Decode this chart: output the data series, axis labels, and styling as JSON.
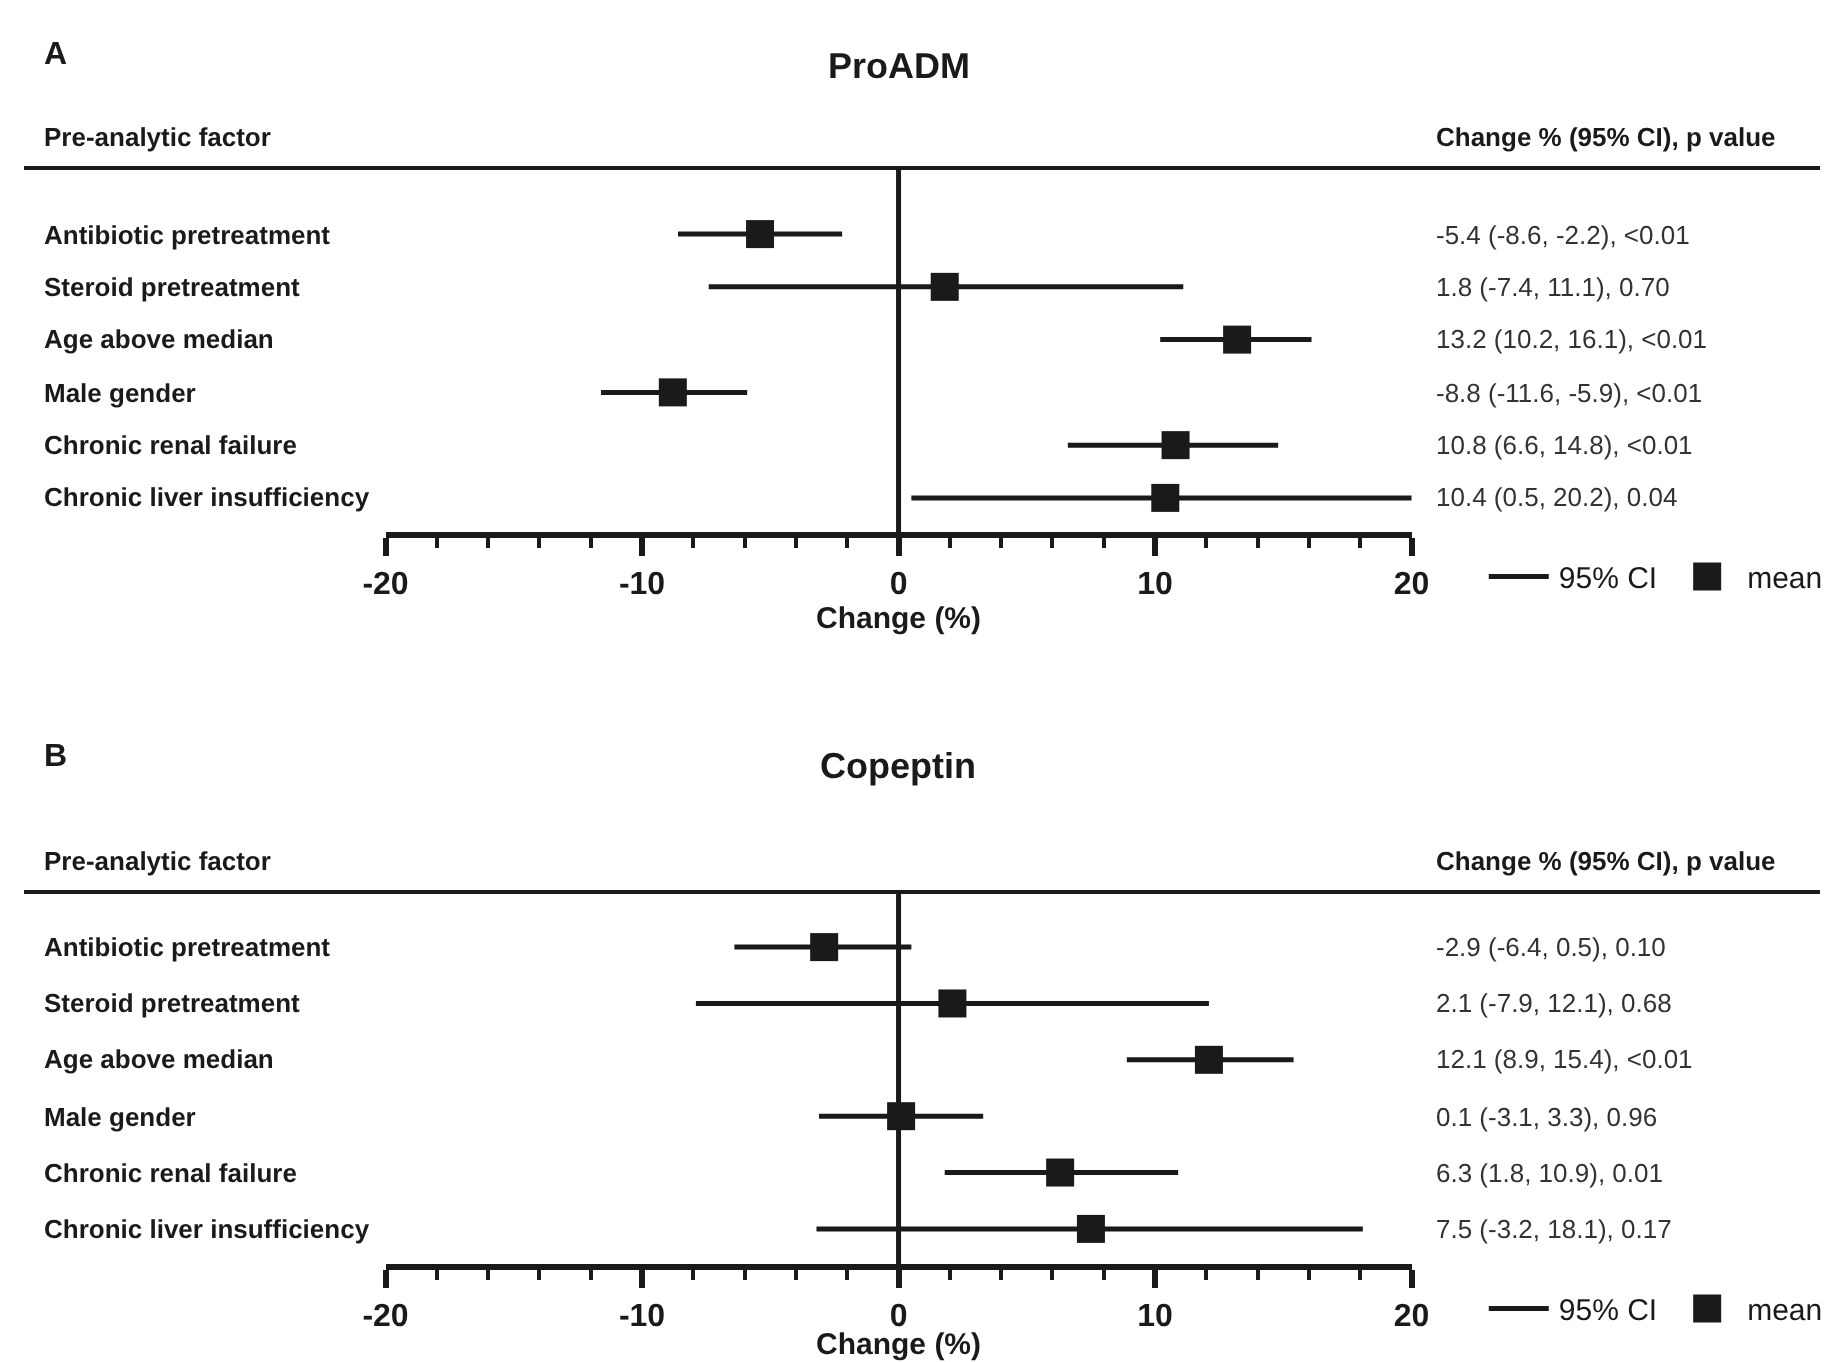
{
  "chart_data": [
    {
      "type": "scatter",
      "orientation": "horizontal",
      "title": "ProADM",
      "xlabel": "Change (%)",
      "ylabel": "Pre-analytic factor",
      "categories": [
        "Antibiotic pretreatment",
        "Steroid pretreatment",
        "Age above median",
        "Male gender",
        "Chronic renal failure",
        "Chronic liver insufficiency"
      ],
      "series": [
        {
          "name": "mean",
          "color": "#1a1a1a",
          "values": [
            -5.4,
            1.8,
            13.2,
            -8.8,
            10.8,
            10.4
          ],
          "errors": [
            [
              -8.6,
              -2.2
            ],
            [
              -7.4,
              11.1
            ],
            [
              10.2,
              16.1
            ],
            [
              -11.6,
              -5.9
            ],
            [
              6.6,
              14.8
            ],
            [
              0.5,
              20.2
            ]
          ]
        }
      ],
      "xlim": [
        -20,
        20
      ],
      "xticks": [
        -20,
        {
          "value": -18,
          "label": null
        },
        {
          "value": -16,
          "label": null
        },
        {
          "value": -14,
          "label": null
        },
        {
          "value": -12,
          "label": null
        },
        -10,
        {
          "value": -8,
          "label": null
        },
        {
          "value": -6,
          "label": null
        },
        {
          "value": -4,
          "label": null
        },
        {
          "value": -2,
          "label": null
        },
        0,
        {
          "value": 2,
          "label": null
        },
        {
          "value": 4,
          "label": null
        },
        {
          "value": 6,
          "label": null
        },
        {
          "value": 8,
          "label": null
        },
        10,
        {
          "value": 12,
          "label": null
        },
        {
          "value": 14,
          "label": null
        },
        {
          "value": 16,
          "label": null
        },
        {
          "value": 18,
          "label": null
        },
        20
      ],
      "ref_lines": [
        {
          "axis": "x",
          "value": 0,
          "color": "#1a1a1a"
        }
      ],
      "marker": "square",
      "legend": "bottom right",
      "annotations": [
        "A",
        "Change % (95% CI), p value",
        "95% CI",
        "-5.4 (-8.6, -2.2), <0.01",
        "1.8 (-7.4, 11.1), 0.70",
        "13.2 (10.2, 16.1), <0.01",
        "-8.8 (-11.6, -5.9), <0.01",
        "10.8 (6.6, 14.8), <0.01",
        "10.4 (0.5, 20.2), 0.04"
      ]
    },
    {
      "type": "scatter",
      "orientation": "horizontal",
      "title": "Copeptin",
      "xlabel": "Change (%)",
      "ylabel": "Pre-analytic factor",
      "categories": [
        "Antibiotic pretreatment",
        "Steroid pretreatment",
        "Age above median",
        "Male gender",
        "Chronic renal failure",
        "Chronic liver insufficiency"
      ],
      "series": [
        {
          "name": "mean",
          "color": "#1a1a1a",
          "values": [
            -2.9,
            2.1,
            12.1,
            0.1,
            6.3,
            7.5
          ],
          "errors": [
            [
              -6.4,
              0.5
            ],
            [
              -7.9,
              12.1
            ],
            [
              8.9,
              15.4
            ],
            [
              -3.1,
              3.3
            ],
            [
              1.8,
              10.9
            ],
            [
              -3.2,
              18.1
            ]
          ]
        }
      ],
      "xlim": [
        -20,
        20
      ],
      "xticks": [
        -20,
        {
          "value": -18,
          "label": null
        },
        {
          "value": -16,
          "label": null
        },
        {
          "value": -14,
          "label": null
        },
        {
          "value": -12,
          "label": null
        },
        -10,
        {
          "value": -8,
          "label": null
        },
        {
          "value": -6,
          "label": null
        },
        {
          "value": -4,
          "label": null
        },
        {
          "value": -2,
          "label": null
        },
        0,
        {
          "value": 2,
          "label": null
        },
        {
          "value": 4,
          "label": null
        },
        {
          "value": 6,
          "label": null
        },
        {
          "value": 8,
          "label": null
        },
        10,
        {
          "value": 12,
          "label": null
        },
        {
          "value": 14,
          "label": null
        },
        {
          "value": 16,
          "label": null
        },
        {
          "value": 18,
          "label": null
        },
        20
      ],
      "ref_lines": [
        {
          "axis": "x",
          "value": 0,
          "color": "#1a1a1a"
        }
      ],
      "marker": "square",
      "legend": "bottom right",
      "annotations": [
        "B",
        "Change % (95% CI), p value",
        "95% CI",
        "-2.9 (-6.4, 0.5), 0.10",
        "2.1 (-7.9, 12.1), 0.68",
        "12.1 (8.9, 15.4), <0.01",
        "0.1 (-3.1, 3.3), 0.96",
        "6.3 (1.8, 10.9), 0.01",
        "7.5 (-3.2, 18.1), 0.17"
      ]
    }
  ]
}
